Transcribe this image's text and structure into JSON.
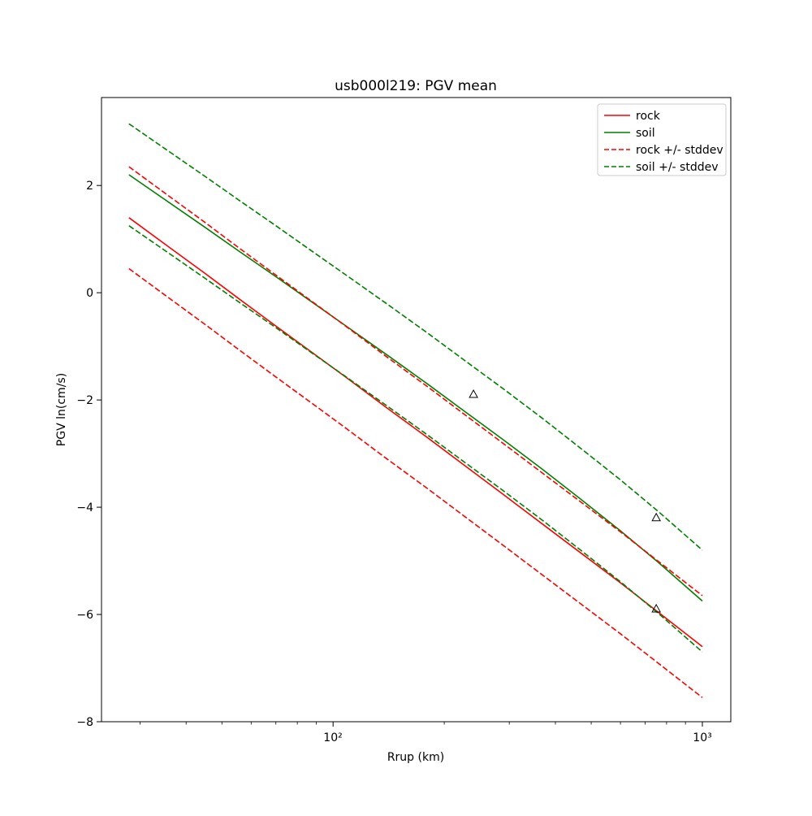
{
  "figure": {
    "background": "#ffffff"
  },
  "chart_data": {
    "type": "line",
    "title": "usb000l219: PGV mean",
    "xlabel": "Rrup (km)",
    "ylabel": "PGV ln(cm/s)",
    "x_scale": "log",
    "y_scale": "linear",
    "xlim": [
      23.6,
      1194
    ],
    "ylim": [
      -8,
      3.64
    ],
    "grid": false,
    "xticks": [
      100,
      1000
    ],
    "xtick_labels": [
      "10²",
      "10³"
    ],
    "x_minor_ticks": [
      30,
      40,
      50,
      60,
      70,
      80,
      90,
      200,
      300,
      400,
      500,
      600,
      700,
      800,
      900
    ],
    "yticks": [
      2,
      0,
      -2,
      -4,
      -6,
      -8
    ],
    "ytick_labels": [
      "2",
      "0",
      "−2",
      "−4",
      "−6",
      "−8"
    ],
    "colors": {
      "rock": "#ff0000",
      "soil": "#008000",
      "marker_edge": "#000000",
      "axes_frame": "#000000",
      "legend_border": "#cccccc"
    },
    "x": [
      28,
      35,
      45,
      56,
      70,
      90,
      110,
      140,
      180,
      230,
      290,
      370,
      470,
      600,
      760,
      1000
    ],
    "series": [
      {
        "name": "rock",
        "color": "#ff0000",
        "style": "solid",
        "values": [
          1.4,
          0.91,
          0.36,
          -0.13,
          -0.62,
          -1.17,
          -1.61,
          -2.15,
          -2.7,
          -3.25,
          -3.77,
          -4.32,
          -4.86,
          -5.41,
          -5.96,
          -6.6
        ]
      },
      {
        "name": "soil",
        "color": "#008000",
        "style": "solid",
        "values": [
          2.2,
          1.74,
          1.22,
          0.76,
          0.3,
          -0.23,
          -0.65,
          -1.16,
          -1.7,
          -2.24,
          -2.75,
          -3.3,
          -3.86,
          -4.44,
          -5.03,
          -5.75
        ]
      },
      {
        "name": "rock + stddev",
        "color": "#ff0000",
        "style": "dashed",
        "values": [
          2.35,
          1.86,
          1.31,
          0.82,
          0.33,
          -0.22,
          -0.66,
          -1.2,
          -1.75,
          -2.3,
          -2.82,
          -3.37,
          -3.91,
          -4.46,
          -5.01,
          -5.65
        ]
      },
      {
        "name": "rock - stddev",
        "color": "#ff0000",
        "style": "dashed",
        "values": [
          0.45,
          -0.04,
          -0.59,
          -1.08,
          -1.57,
          -2.12,
          -2.56,
          -3.1,
          -3.65,
          -4.2,
          -4.72,
          -5.27,
          -5.81,
          -6.36,
          -6.91,
          -7.55
        ]
      },
      {
        "name": "soil + stddev",
        "color": "#008000",
        "style": "dashed",
        "values": [
          3.15,
          2.69,
          2.17,
          1.71,
          1.25,
          0.72,
          0.3,
          -0.21,
          -0.75,
          -1.29,
          -1.8,
          -2.35,
          -2.91,
          -3.49,
          -4.08,
          -4.8
        ]
      },
      {
        "name": "soil - stddev",
        "color": "#008000",
        "style": "dashed",
        "values": [
          1.25,
          0.79,
          0.27,
          -0.19,
          -0.65,
          -1.18,
          -1.6,
          -2.11,
          -2.65,
          -3.19,
          -3.7,
          -4.25,
          -4.81,
          -5.39,
          -5.98,
          -6.7
        ]
      }
    ],
    "markers": {
      "symbol": "triangle-up-open",
      "points": [
        {
          "x": 240,
          "y": -1.9
        },
        {
          "x": 750,
          "y": -4.2
        },
        {
          "x": 750,
          "y": -5.9
        }
      ]
    },
    "legend": {
      "position": "upper right",
      "entries": [
        {
          "label": "rock",
          "color": "#ff0000",
          "style": "solid"
        },
        {
          "label": "soil",
          "color": "#008000",
          "style": "solid"
        },
        {
          "label": "rock +/- stddev",
          "color": "#ff0000",
          "style": "dashed"
        },
        {
          "label": "soil +/- stddev",
          "color": "#008000",
          "style": "dashed"
        }
      ]
    }
  }
}
